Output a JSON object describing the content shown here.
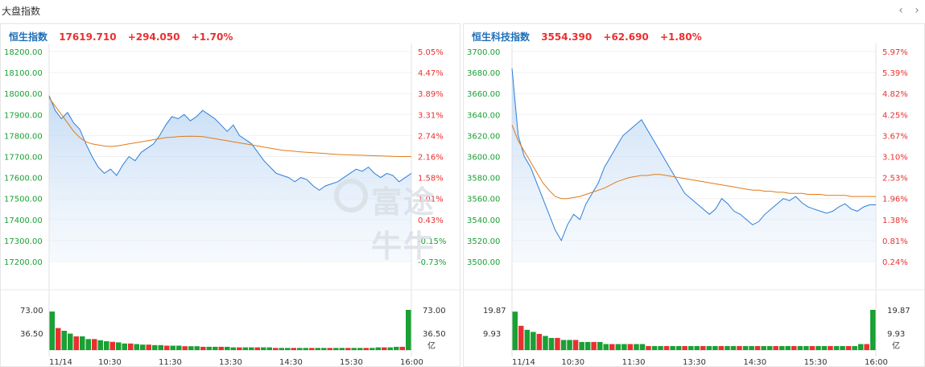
{
  "page": {
    "title": "大盘指数"
  },
  "nav": {
    "prev_icon": "‹",
    "next_icon": "›"
  },
  "watermark": "富途牛牛",
  "colors": {
    "up": "#e93030",
    "down": "#1aa034",
    "name": "#1f6fb8",
    "price_line": "#2f7ed8",
    "avg_line": "#e07b1a"
  },
  "panels": [
    {
      "name": "恒生指数",
      "price": "17619.710",
      "change": "+294.050",
      "change_pct": "+1.70%",
      "price_ticks": [
        "18200.00",
        "18100.00",
        "18000.00",
        "17900.00",
        "17800.00",
        "17700.00",
        "17600.00",
        "17500.00",
        "17400.00",
        "17300.00",
        "17200.00"
      ],
      "pct_ticks": [
        "5.05%",
        "4.47%",
        "3.89%",
        "3.31%",
        "2.74%",
        "2.16%",
        "1.58%",
        "1.01%",
        "0.43%",
        "-0.15%",
        "-0.73%"
      ],
      "pct_colors": [
        "up",
        "up",
        "up",
        "up",
        "up",
        "up",
        "up",
        "up",
        "up",
        "down",
        "down"
      ],
      "vol_ticks": [
        "73.00",
        "36.50"
      ],
      "vol_unit": "亿",
      "time_labels": [
        "11/14",
        "10:30",
        "11:30",
        "13:30",
        "14:30",
        "15:30",
        "16:00"
      ],
      "chart_data": {
        "type": "line",
        "ylim": [
          17200,
          18200
        ],
        "series": [
          {
            "values": [
              17990,
              17920,
              17880,
              17910,
              17860,
              17830,
              17760,
              17700,
              17650,
              17620,
              17640,
              17610,
              17660,
              17700,
              17680,
              17720,
              17740,
              17760,
              17800,
              17850,
              17890,
              17880,
              17900,
              17870,
              17890,
              17920,
              17900,
              17880,
              17850,
              17820,
              17850,
              17800,
              17780,
              17760,
              17720,
              17680,
              17650,
              17620,
              17610,
              17600,
              17580,
              17600,
              17590,
              17560,
              17540,
              17560,
              17570,
              17580,
              17600,
              17620,
              17640,
              17630,
              17650,
              17620,
              17600,
              17620,
              17610,
              17580,
              17600,
              17620
            ]
          },
          {
            "values": [
              17980,
              17940,
              17900,
              17860,
              17820,
              17790,
              17770,
              17760,
              17755,
              17750,
              17748,
              17750,
              17755,
              17760,
              17765,
              17770,
              17775,
              17780,
              17785,
              17790,
              17792,
              17795,
              17796,
              17797,
              17796,
              17795,
              17790,
              17785,
              17780,
              17775,
              17770,
              17765,
              17760,
              17755,
              17750,
              17745,
              17740,
              17735,
              17730,
              17728,
              17725,
              17722,
              17720,
              17718,
              17716,
              17714,
              17712,
              17710,
              17709,
              17708,
              17707,
              17706,
              17705,
              17704,
              17703,
              17702,
              17701,
              17700,
              17700,
              17700
            ]
          }
        ],
        "volume": [
          70,
          40,
          35,
          30,
          25,
          25,
          20,
          20,
          18,
          16,
          15,
          14,
          12,
          12,
          11,
          10,
          10,
          9,
          9,
          8,
          8,
          8,
          7,
          7,
          7,
          6,
          6,
          6,
          6,
          6,
          5,
          5,
          5,
          5,
          5,
          5,
          5,
          4,
          4,
          4,
          4,
          4,
          4,
          4,
          4,
          4,
          4,
          4,
          4,
          4,
          4,
          4,
          4,
          4,
          5,
          5,
          5,
          6,
          6,
          73
        ]
      }
    },
    {
      "name": "恒生科技指数",
      "price": "3554.390",
      "change": "+62.690",
      "change_pct": "+1.80%",
      "price_ticks": [
        "3700.00",
        "3680.00",
        "3660.00",
        "3640.00",
        "3620.00",
        "3600.00",
        "3580.00",
        "3560.00",
        "3540.00",
        "3520.00",
        "3500.00"
      ],
      "pct_ticks": [
        "5.97%",
        "5.39%",
        "4.82%",
        "4.25%",
        "3.67%",
        "3.10%",
        "2.53%",
        "1.96%",
        "1.38%",
        "0.81%",
        "0.24%"
      ],
      "pct_colors": [
        "up",
        "up",
        "up",
        "up",
        "up",
        "up",
        "up",
        "up",
        "up",
        "up",
        "up"
      ],
      "vol_ticks": [
        "19.87",
        "9.93"
      ],
      "vol_unit": "亿",
      "time_labels": [
        "11/14",
        "10:30",
        "11:30",
        "13:30",
        "14:30",
        "15:30",
        "16:00"
      ],
      "chart_data": {
        "type": "line",
        "ylim": [
          3500,
          3700
        ],
        "series": [
          {
            "values": [
              3684,
              3620,
              3600,
              3590,
              3575,
              3560,
              3545,
              3530,
              3520,
              3535,
              3545,
              3540,
              3555,
              3565,
              3575,
              3590,
              3600,
              3610,
              3620,
              3625,
              3630,
              3635,
              3625,
              3615,
              3605,
              3595,
              3585,
              3575,
              3565,
              3560,
              3555,
              3550,
              3545,
              3550,
              3560,
              3555,
              3548,
              3545,
              3540,
              3535,
              3538,
              3545,
              3550,
              3555,
              3560,
              3558,
              3562,
              3556,
              3552,
              3550,
              3548,
              3546,
              3548,
              3552,
              3555,
              3550,
              3548,
              3552,
              3554,
              3554
            ]
          },
          {
            "values": [
              3630,
              3615,
              3605,
              3595,
              3585,
              3575,
              3568,
              3562,
              3560,
              3560,
              3561,
              3562,
              3564,
              3566,
              3568,
              3570,
              3573,
              3576,
              3578,
              3580,
              3581,
              3582,
              3582,
              3583,
              3583,
              3582,
              3581,
              3580,
              3579,
              3578,
              3577,
              3576,
              3575,
              3574,
              3573,
              3572,
              3571,
              3570,
              3569,
              3568,
              3568,
              3567,
              3567,
              3566,
              3566,
              3565,
              3565,
              3565,
              3564,
              3564,
              3564,
              3563,
              3563,
              3563,
              3563,
              3562,
              3562,
              3562,
              3562,
              3562
            ]
          }
        ],
        "volume": [
          19,
          12,
          10,
          9,
          8,
          7,
          6,
          6,
          5,
          5,
          5,
          4,
          4,
          4,
          4,
          3,
          3,
          3,
          3,
          3,
          3,
          3,
          2,
          2,
          2,
          2,
          2,
          2,
          2,
          2,
          2,
          2,
          2,
          2,
          2,
          2,
          2,
          2,
          2,
          2,
          2,
          2,
          2,
          2,
          2,
          2,
          2,
          2,
          2,
          2,
          2,
          2,
          2,
          2,
          2,
          2,
          2,
          3,
          3,
          19.87
        ]
      }
    }
  ]
}
